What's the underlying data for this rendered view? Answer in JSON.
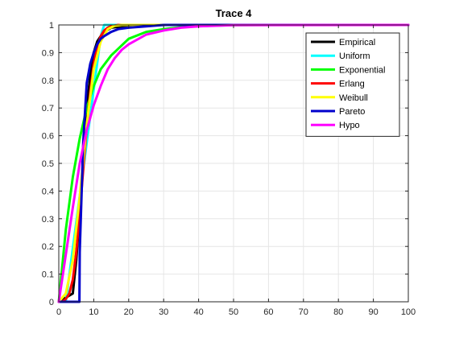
{
  "chart_data": {
    "type": "line",
    "title": "Trace 4",
    "xlabel": "",
    "ylabel": "",
    "xlim": [
      0,
      100
    ],
    "ylim": [
      0,
      1
    ],
    "xticks": [
      0,
      10,
      20,
      30,
      40,
      50,
      60,
      70,
      80,
      90,
      100
    ],
    "yticks": [
      0,
      0.1,
      0.2,
      0.3,
      0.4,
      0.5,
      0.6,
      0.7,
      0.8,
      0.9,
      1
    ],
    "grid": true,
    "legend_position": "top-right",
    "series": [
      {
        "name": "Empirical",
        "color": "#000000",
        "x": [
          0,
          4,
          5,
          6,
          7,
          8,
          9,
          10,
          11,
          12,
          13,
          15,
          20,
          30,
          100
        ],
        "y": [
          0,
          0.03,
          0.15,
          0.32,
          0.52,
          0.7,
          0.82,
          0.9,
          0.94,
          0.96,
          0.975,
          0.99,
          0.997,
          1,
          1
        ]
      },
      {
        "name": "Uniform",
        "color": "#00ffff",
        "x": [
          0,
          2,
          12,
          13,
          100
        ],
        "y": [
          0,
          0,
          0.96,
          1,
          1
        ]
      },
      {
        "name": "Exponential",
        "color": "#00ff00",
        "x": [
          0,
          2,
          4,
          6,
          8,
          10,
          12,
          15,
          20,
          25,
          30,
          35,
          40,
          50,
          60,
          100
        ],
        "y": [
          0,
          0.26,
          0.45,
          0.59,
          0.7,
          0.78,
          0.84,
          0.89,
          0.95,
          0.975,
          0.985,
          0.992,
          0.996,
          0.999,
          1,
          1
        ]
      },
      {
        "name": "Erlang",
        "color": "#ff0000",
        "x": [
          0,
          1,
          2,
          3,
          4,
          5,
          6,
          7,
          8,
          9,
          10,
          11,
          12,
          13,
          14,
          15,
          17,
          20,
          100
        ],
        "y": [
          0,
          0,
          0.01,
          0.03,
          0.08,
          0.18,
          0.32,
          0.48,
          0.63,
          0.76,
          0.86,
          0.92,
          0.96,
          0.98,
          0.99,
          0.995,
          1,
          1,
          1
        ]
      },
      {
        "name": "Weibull",
        "color": "#ffff00",
        "x": [
          0,
          2,
          4,
          6,
          8,
          10,
          12,
          14,
          16,
          18,
          20,
          100
        ],
        "y": [
          0,
          0.03,
          0.15,
          0.38,
          0.64,
          0.84,
          0.94,
          0.985,
          0.997,
          1,
          1,
          1
        ]
      },
      {
        "name": "Pareto",
        "color": "#0000cc",
        "x": [
          0,
          5.9,
          6,
          7,
          8,
          9,
          10,
          11,
          12,
          13,
          15,
          17,
          20,
          25,
          30,
          40,
          100
        ],
        "y": [
          0,
          0,
          0.18,
          0.58,
          0.79,
          0.86,
          0.9,
          0.93,
          0.95,
          0.96,
          0.975,
          0.985,
          0.99,
          0.995,
          1,
          1,
          1
        ]
      },
      {
        "name": "Hypo",
        "color": "#ff00ff",
        "x": [
          0,
          2,
          4,
          6,
          8,
          10,
          12,
          14,
          16,
          18,
          20,
          25,
          30,
          35,
          40,
          50,
          100
        ],
        "y": [
          0,
          0.17,
          0.34,
          0.5,
          0.62,
          0.71,
          0.78,
          0.84,
          0.88,
          0.91,
          0.93,
          0.965,
          0.98,
          0.99,
          0.995,
          0.999,
          1
        ]
      }
    ]
  }
}
